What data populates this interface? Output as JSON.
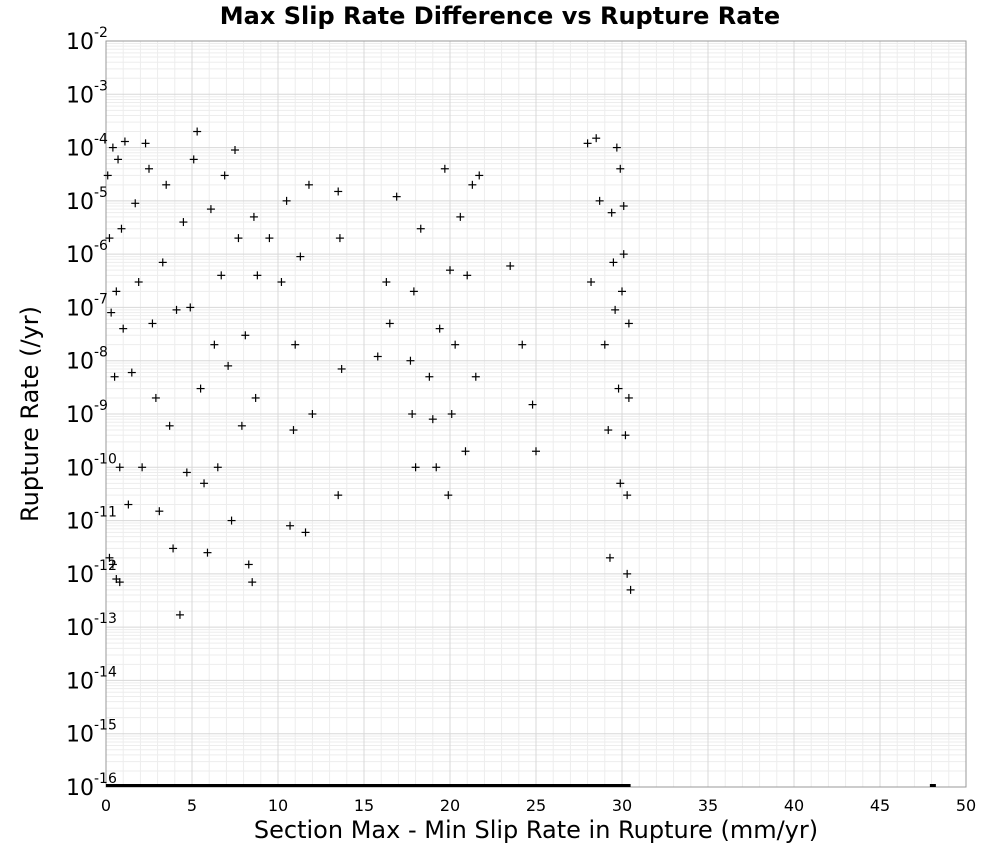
{
  "chart_data": {
    "type": "scatter",
    "title": "Max Slip Rate Difference vs Rupture Rate",
    "xlabel": "Section Max - Min Slip Rate in Rupture (mm/yr)",
    "ylabel": "Rupture Rate (/yr)",
    "xlim": [
      0,
      50
    ],
    "ylim": [
      1e-16,
      0.01
    ],
    "y_scale": "log",
    "x_ticks": [
      0,
      5,
      10,
      15,
      20,
      25,
      30,
      35,
      40,
      45,
      50
    ],
    "y_ticks": [
      {
        "base": "10",
        "exp": "-2"
      },
      {
        "base": "10",
        "exp": "-3"
      },
      {
        "base": "10",
        "exp": "-4"
      },
      {
        "base": "10",
        "exp": "-5"
      },
      {
        "base": "10",
        "exp": "-6"
      },
      {
        "base": "10",
        "exp": "-7"
      },
      {
        "base": "10",
        "exp": "-8"
      },
      {
        "base": "10",
        "exp": "-9"
      },
      {
        "base": "10",
        "exp": "-10"
      },
      {
        "base": "10",
        "exp": "-11"
      },
      {
        "base": "10",
        "exp": "-12"
      },
      {
        "base": "10",
        "exp": "-13"
      },
      {
        "base": "10",
        "exp": "-14"
      },
      {
        "base": "10",
        "exp": "-15"
      },
      {
        "base": "10",
        "exp": "-16"
      }
    ],
    "grid": true,
    "marker": "plus",
    "marker_color": "#000000",
    "series": [
      {
        "points": [
          [
            0.1,
            3e-05
          ],
          [
            0.2,
            2e-06
          ],
          [
            0.3,
            8e-08
          ],
          [
            0.4,
            0.0001
          ],
          [
            0.5,
            5e-09
          ],
          [
            0.6,
            2e-07
          ],
          [
            0.7,
            6e-05
          ],
          [
            0.8,
            1e-10
          ],
          [
            0.9,
            3e-06
          ],
          [
            1.0,
            4e-08
          ],
          [
            0.2,
            2e-12
          ],
          [
            0.4,
            1.5e-12
          ],
          [
            0.6,
            8e-13
          ],
          [
            0.8,
            7e-13
          ],
          [
            1.1,
            0.00013
          ],
          [
            1.3,
            2e-11
          ],
          [
            1.5,
            6e-09
          ],
          [
            1.7,
            9e-06
          ],
          [
            1.9,
            3e-07
          ],
          [
            2.1,
            1e-10
          ],
          [
            2.3,
            0.00012
          ],
          [
            2.5,
            4e-05
          ],
          [
            2.7,
            5e-08
          ],
          [
            2.9,
            2e-09
          ],
          [
            3.1,
            1.5e-11
          ],
          [
            3.3,
            7e-07
          ],
          [
            3.5,
            2e-05
          ],
          [
            3.7,
            6e-10
          ],
          [
            3.9,
            3e-12
          ],
          [
            4.1,
            9e-08
          ],
          [
            4.3,
            1.7e-13
          ],
          [
            4.5,
            4e-06
          ],
          [
            4.7,
            8e-11
          ],
          [
            4.9,
            1e-07
          ],
          [
            5.1,
            6e-05
          ],
          [
            5.3,
            0.0002
          ],
          [
            5.5,
            3e-09
          ],
          [
            5.7,
            5e-11
          ],
          [
            5.9,
            2.5e-12
          ],
          [
            6.1,
            7e-06
          ],
          [
            6.3,
            2e-08
          ],
          [
            6.5,
            1e-10
          ],
          [
            6.7,
            4e-07
          ],
          [
            6.9,
            3e-05
          ],
          [
            7.1,
            8e-09
          ],
          [
            7.3,
            1e-11
          ],
          [
            7.5,
            9e-05
          ],
          [
            7.7,
            2e-06
          ],
          [
            7.9,
            6e-10
          ],
          [
            8.1,
            3e-08
          ],
          [
            8.3,
            1.5e-12
          ],
          [
            8.5,
            7e-13
          ],
          [
            8.6,
            5e-06
          ],
          [
            8.7,
            2e-09
          ],
          [
            8.8,
            4e-07
          ],
          [
            9.5,
            2e-06
          ],
          [
            10.2,
            3e-07
          ],
          [
            10.5,
            1e-05
          ],
          [
            10.7,
            8e-12
          ],
          [
            10.9,
            5e-10
          ],
          [
            11.0,
            2e-08
          ],
          [
            11.3,
            9e-07
          ],
          [
            11.6,
            6e-12
          ],
          [
            11.8,
            2e-05
          ],
          [
            12.0,
            1e-09
          ],
          [
            13.5,
            1.5e-05
          ],
          [
            13.6,
            2e-06
          ],
          [
            13.7,
            7e-09
          ],
          [
            13.5,
            3e-11
          ],
          [
            15.8,
            1.2e-08
          ],
          [
            16.3,
            3e-07
          ],
          [
            16.5,
            5e-08
          ],
          [
            16.9,
            1.2e-05
          ],
          [
            17.7,
            1e-08
          ],
          [
            17.9,
            2e-07
          ],
          [
            18.0,
            1e-10
          ],
          [
            17.8,
            1e-09
          ],
          [
            18.3,
            3e-06
          ],
          [
            18.8,
            5e-09
          ],
          [
            19.0,
            8e-10
          ],
          [
            19.2,
            1e-10
          ],
          [
            19.4,
            4e-08
          ],
          [
            19.7,
            4e-05
          ],
          [
            19.9,
            3e-11
          ],
          [
            20.0,
            5e-07
          ],
          [
            20.1,
            1e-09
          ],
          [
            20.3,
            2e-08
          ],
          [
            20.6,
            5e-06
          ],
          [
            20.9,
            2e-10
          ],
          [
            21.0,
            4e-07
          ],
          [
            21.3,
            2e-05
          ],
          [
            21.7,
            3e-05
          ],
          [
            21.5,
            5e-09
          ],
          [
            23.5,
            6e-07
          ],
          [
            24.2,
            2e-08
          ],
          [
            24.8,
            1.5e-09
          ],
          [
            25.0,
            2e-10
          ],
          [
            28.0,
            0.00012
          ],
          [
            28.2,
            3e-07
          ],
          [
            28.5,
            0.00015
          ],
          [
            28.7,
            1e-05
          ],
          [
            29.0,
            2e-08
          ],
          [
            29.2,
            5e-10
          ],
          [
            29.3,
            2e-12
          ],
          [
            29.4,
            6e-06
          ],
          [
            29.6,
            9e-08
          ],
          [
            29.7,
            0.0001
          ],
          [
            29.8,
            3e-09
          ],
          [
            29.9,
            5e-11
          ],
          [
            30.0,
            2e-07
          ],
          [
            30.1,
            8e-06
          ],
          [
            30.2,
            4e-10
          ],
          [
            30.3,
            1e-12
          ],
          [
            30.4,
            5e-08
          ],
          [
            30.5,
            5e-13
          ],
          [
            30.3,
            3e-11
          ],
          [
            30.1,
            1e-06
          ],
          [
            29.9,
            4e-05
          ],
          [
            29.5,
            7e-07
          ],
          [
            30.4,
            2e-09
          ]
        ]
      }
    ]
  }
}
